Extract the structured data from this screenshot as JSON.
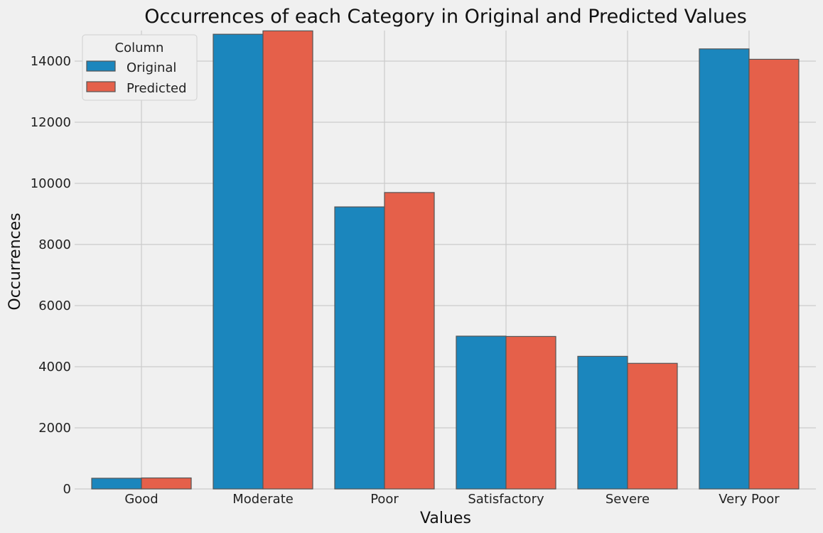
{
  "chart_data": {
    "type": "bar",
    "title": "Occurrences of each Category in Original and Predicted Values",
    "xlabel": "Values",
    "ylabel": "Occurrences",
    "categories": [
      "Good",
      "Moderate",
      "Poor",
      "Satisfactory",
      "Severe",
      "Very Poor"
    ],
    "series": [
      {
        "name": "Original",
        "values": [
          350,
          14880,
          9230,
          5000,
          4340,
          14400
        ],
        "color": "#1b86bd"
      },
      {
        "name": "Predicted",
        "values": [
          360,
          14990,
          9700,
          4990,
          4110,
          14060
        ],
        "color": "#e5604a"
      }
    ],
    "ylim": [
      0,
      15000
    ],
    "yticks": [
      0,
      2000,
      4000,
      6000,
      8000,
      10000,
      12000,
      14000
    ],
    "grid": "horizontal",
    "legend": {
      "title": "Column",
      "position": "top-left"
    }
  }
}
